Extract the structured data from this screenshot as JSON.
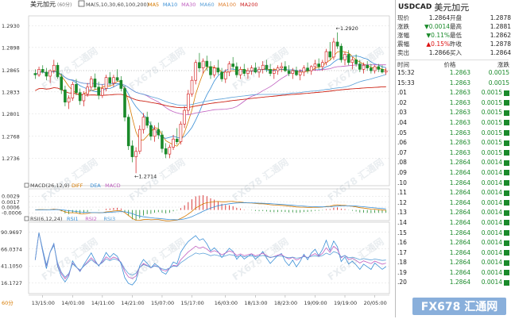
{
  "chart_data": {
    "type": "candlestick",
    "title": "美元加元",
    "period": "60分",
    "ma_legend": {
      "label": "MA(5,10,30,60,100,200)",
      "items": [
        {
          "name": "MA5",
          "color": "#d67a00"
        },
        {
          "name": "MA10",
          "color": "#3a8fd6"
        },
        {
          "name": "MA30",
          "color": "#c060c0"
        },
        {
          "name": "MA60",
          "color": "#5aa0d8"
        },
        {
          "name": "MA100",
          "color": "#e08030"
        },
        {
          "name": "MA200",
          "color": "#cc2020"
        }
      ]
    },
    "ylim": [
      1.2705,
      1.2935
    ],
    "y_ticks": [
      "1.2930",
      "1.2898",
      "1.2865",
      "1.2833",
      "1.2801",
      "1.2768",
      "1.2736"
    ],
    "y_tick_values": [
      1.293,
      1.2898,
      1.2865,
      1.2833,
      1.2801,
      1.2768,
      1.2736
    ],
    "x_ticks": [
      "13/15:00",
      "14/01:00",
      "14/11:00",
      "14/21:00",
      "15/07:00",
      "15/17:00",
      "16/03:00",
      "18/13:00",
      "18/23:00",
      "19/09:00",
      "19/19:00",
      "20/05:00"
    ],
    "x_tick_index": [
      2,
      10,
      18,
      26,
      34,
      42,
      51,
      59,
      67,
      75,
      83,
      91
    ],
    "annotations": [
      {
        "text": "1.2920",
        "index": 81
      },
      {
        "text": "1.2714",
        "index": 27
      }
    ],
    "candles": [
      [
        1.286,
        1.2866,
        1.2852,
        1.2858
      ],
      [
        1.2858,
        1.287,
        1.2855,
        1.2866
      ],
      [
        1.2866,
        1.2872,
        1.286,
        1.2862
      ],
      [
        1.2862,
        1.2868,
        1.285,
        1.2856
      ],
      [
        1.2856,
        1.2866,
        1.2846,
        1.2864
      ],
      [
        1.2864,
        1.288,
        1.286,
        1.2872
      ],
      [
        1.2872,
        1.2876,
        1.2852,
        1.2855
      ],
      [
        1.2855,
        1.286,
        1.283,
        1.2836
      ],
      [
        1.2836,
        1.2842,
        1.2812,
        1.2818
      ],
      [
        1.2818,
        1.2828,
        1.2808,
        1.2824
      ],
      [
        1.2824,
        1.2848,
        1.282,
        1.2844
      ],
      [
        1.2844,
        1.2852,
        1.2828,
        1.2832
      ],
      [
        1.2832,
        1.2838,
        1.2814,
        1.282
      ],
      [
        1.282,
        1.2834,
        1.2812,
        1.283
      ],
      [
        1.283,
        1.2846,
        1.2826,
        1.284
      ],
      [
        1.284,
        1.2856,
        1.2836,
        1.2852
      ],
      [
        1.2852,
        1.286,
        1.2836,
        1.284
      ],
      [
        1.284,
        1.2848,
        1.2822,
        1.2828
      ],
      [
        1.2828,
        1.2844,
        1.2824,
        1.2838
      ],
      [
        1.2838,
        1.2858,
        1.2834,
        1.2854
      ],
      [
        1.2854,
        1.2862,
        1.2842,
        1.2846
      ],
      [
        1.2846,
        1.2858,
        1.284,
        1.2854
      ],
      [
        1.2854,
        1.2866,
        1.2848,
        1.285
      ],
      [
        1.285,
        1.2856,
        1.2834,
        1.2838
      ],
      [
        1.2838,
        1.2842,
        1.279,
        1.2796
      ],
      [
        1.2796,
        1.28,
        1.2748,
        1.2754
      ],
      [
        1.2754,
        1.2762,
        1.273,
        1.2738
      ],
      [
        1.2738,
        1.2752,
        1.2714,
        1.2746
      ],
      [
        1.2746,
        1.2784,
        1.2742,
        1.2778
      ],
      [
        1.2778,
        1.2802,
        1.2772,
        1.2796
      ],
      [
        1.2796,
        1.2804,
        1.278,
        1.2784
      ],
      [
        1.2784,
        1.279,
        1.2762,
        1.2768
      ],
      [
        1.2768,
        1.2784,
        1.276,
        1.2778
      ],
      [
        1.2778,
        1.2788,
        1.2764,
        1.277
      ],
      [
        1.277,
        1.2776,
        1.2744,
        1.275
      ],
      [
        1.275,
        1.2758,
        1.2736,
        1.2742
      ],
      [
        1.2742,
        1.2756,
        1.2736,
        1.2752
      ],
      [
        1.2752,
        1.277,
        1.2748,
        1.2764
      ],
      [
        1.2764,
        1.278,
        1.2756,
        1.276
      ],
      [
        1.276,
        1.279,
        1.2756,
        1.2786
      ],
      [
        1.2786,
        1.2812,
        1.278,
        1.2806
      ],
      [
        1.2806,
        1.2836,
        1.28,
        1.283
      ],
      [
        1.283,
        1.2856,
        1.2826,
        1.285
      ],
      [
        1.285,
        1.288,
        1.2844,
        1.2876
      ],
      [
        1.2876,
        1.289,
        1.2862,
        1.2868
      ],
      [
        1.2868,
        1.2882,
        1.286,
        1.2878
      ],
      [
        1.2878,
        1.2886,
        1.2864,
        1.287
      ],
      [
        1.287,
        1.2878,
        1.2852,
        1.2858
      ],
      [
        1.2858,
        1.2872,
        1.2854,
        1.2868
      ],
      [
        1.2868,
        1.288,
        1.2858,
        1.2862
      ],
      [
        1.2862,
        1.2868,
        1.2848,
        1.2852
      ],
      [
        1.2852,
        1.2866,
        1.2846,
        1.2862
      ],
      [
        1.2862,
        1.2878,
        1.2856,
        1.2874
      ],
      [
        1.2874,
        1.2884,
        1.2866,
        1.287
      ],
      [
        1.287,
        1.2876,
        1.2854,
        1.2858
      ],
      [
        1.2858,
        1.287,
        1.2852,
        1.2866
      ],
      [
        1.2866,
        1.2874,
        1.2856,
        1.286
      ],
      [
        1.286,
        1.2868,
        1.2852,
        1.2864
      ],
      [
        1.2864,
        1.2872,
        1.2858,
        1.2868
      ],
      [
        1.2868,
        1.2876,
        1.286,
        1.2862
      ],
      [
        1.2862,
        1.287,
        1.2854,
        1.2866
      ],
      [
        1.2866,
        1.2878,
        1.286,
        1.2872
      ],
      [
        1.2872,
        1.288,
        1.2862,
        1.2866
      ],
      [
        1.2866,
        1.2874,
        1.2856,
        1.286
      ],
      [
        1.286,
        1.2868,
        1.2852,
        1.2864
      ],
      [
        1.2864,
        1.2872,
        1.2858,
        1.2868
      ],
      [
        1.2868,
        1.2876,
        1.2862,
        1.287
      ],
      [
        1.287,
        1.2878,
        1.2862,
        1.2864
      ],
      [
        1.2864,
        1.2872,
        1.2856,
        1.286
      ],
      [
        1.286,
        1.2868,
        1.2852,
        1.2864
      ],
      [
        1.2864,
        1.287,
        1.2856,
        1.2858
      ],
      [
        1.2858,
        1.2866,
        1.285,
        1.2862
      ],
      [
        1.2862,
        1.2872,
        1.2856,
        1.2868
      ],
      [
        1.2868,
        1.2876,
        1.286,
        1.2864
      ],
      [
        1.2864,
        1.2872,
        1.2858,
        1.287
      ],
      [
        1.287,
        1.288,
        1.2864,
        1.2874
      ],
      [
        1.2874,
        1.2882,
        1.2866,
        1.287
      ],
      [
        1.287,
        1.288,
        1.2864,
        1.2876
      ],
      [
        1.2876,
        1.2896,
        1.2872,
        1.2892
      ],
      [
        1.2892,
        1.2906,
        1.288,
        1.2884
      ],
      [
        1.2884,
        1.2912,
        1.288,
        1.2906
      ],
      [
        1.2906,
        1.292,
        1.2896,
        1.29
      ],
      [
        1.29,
        1.2904,
        1.2876,
        1.288
      ],
      [
        1.288,
        1.2892,
        1.2872,
        1.2888
      ],
      [
        1.2888,
        1.2894,
        1.2872,
        1.2876
      ],
      [
        1.2876,
        1.2884,
        1.2866,
        1.288
      ],
      [
        1.288,
        1.2888,
        1.287,
        1.2874
      ],
      [
        1.2874,
        1.288,
        1.2862,
        1.2866
      ],
      [
        1.2866,
        1.2876,
        1.286,
        1.2872
      ],
      [
        1.2872,
        1.2878,
        1.2864,
        1.2868
      ],
      [
        1.2868,
        1.2874,
        1.286,
        1.2864
      ],
      [
        1.2864,
        1.2872,
        1.286,
        1.287
      ],
      [
        1.287,
        1.2874,
        1.2862,
        1.2866
      ],
      [
        1.2866,
        1.2872,
        1.286,
        1.2862
      ],
      [
        1.2862,
        1.2868,
        1.2858,
        1.2864
      ]
    ],
    "macd": {
      "label": "MACD(26,12,9)",
      "items": [
        {
          "name": "DIFF",
          "color": "#d67a00"
        },
        {
          "name": "DEA",
          "color": "#3a8fd6"
        },
        {
          "name": "MACD",
          "color": "#c060c0"
        }
      ],
      "ylim": [
        -0.0009,
        0.0031
      ],
      "y_ticks": [
        "0.0029",
        "0.0017",
        "0.0006",
        "-0.0006"
      ],
      "y_tick_values": [
        0.0029,
        0.0017,
        0.0006,
        -0.0006
      ]
    },
    "rsi": {
      "label": "RSI(6,12,24)",
      "items": [
        {
          "name": "RSI1",
          "color": "#3a8fd6"
        },
        {
          "name": "RSI2",
          "color": "#c060c0"
        },
        {
          "name": "RSI3",
          "color": "#5aa0d8"
        }
      ],
      "ylim": [
        10,
        96
      ],
      "y_ticks": [
        "90.9697",
        "66.0374",
        "41.1050",
        "16.1727"
      ],
      "y_tick_values": [
        90.9697,
        66.0374,
        41.105,
        16.1727
      ]
    }
  },
  "quote": {
    "symbol": "USDCAD",
    "name": "美元加元",
    "rows": [
      {
        "l1": "现价",
        "v1": "1.2864",
        "c1": "blk",
        "l2": "开盘",
        "v2": "1.2878",
        "c2": "blk"
      },
      {
        "l1": "涨跌",
        "v1": "▼0.0014",
        "c1": "dn",
        "l2": "最高",
        "v2": "1.2881",
        "c2": "blk"
      },
      {
        "l1": "涨幅",
        "v1": "▼0.11%",
        "c1": "dn",
        "l2": "最低",
        "v2": "1.2862",
        "c2": "blk"
      },
      {
        "l1": "震幅",
        "v1": "▲0.15%",
        "c1": "up",
        "l2": "昨收",
        "v2": "1.2878",
        "c2": "blk"
      },
      {
        "l1": "卖出",
        "v1": "1.2866",
        "c1": "blk",
        "l2": "买入",
        "v2": "1.2864",
        "c2": "blk"
      }
    ]
  },
  "ticks": {
    "headers": [
      "时间",
      "价格",
      "涨跌"
    ],
    "rows": [
      {
        "t": "15:32",
        "p": "1.2863",
        "c": "0.0015",
        "sq": false
      },
      {
        "t": "15:33",
        "p": "1.2863",
        "c": "0.0015",
        "sq": false
      },
      {
        "t": ".01",
        "p": "1.2863",
        "c": "0.0015",
        "sq": true
      },
      {
        "t": ".02",
        "p": "1.2863",
        "c": "0.0015",
        "sq": true
      },
      {
        "t": ".03",
        "p": "1.2863",
        "c": "0.0015",
        "sq": true
      },
      {
        "t": ".04",
        "p": "1.2863",
        "c": "0.0015",
        "sq": true
      },
      {
        "t": ".05",
        "p": "1.2863",
        "c": "0.0015",
        "sq": true
      },
      {
        "t": ".06",
        "p": "1.2863",
        "c": "0.0015",
        "sq": true
      },
      {
        "t": ".07",
        "p": "1.2863",
        "c": "0.0015",
        "sq": true
      },
      {
        "t": ".08",
        "p": "1.2864",
        "c": "0.0014",
        "sq": true
      },
      {
        "t": ".09",
        "p": "1.2864",
        "c": "0.0014",
        "sq": true
      },
      {
        "t": ".10",
        "p": "1.2864",
        "c": "0.0014",
        "sq": true
      },
      {
        "t": ".11",
        "p": "1.2864",
        "c": "0.0014",
        "sq": true
      },
      {
        "t": ".12",
        "p": "1.2864",
        "c": "0.0014",
        "sq": true
      },
      {
        "t": ".13",
        "p": "1.2864",
        "c": "0.0014",
        "sq": true
      },
      {
        "t": ".14",
        "p": "1.2864",
        "c": "0.0014",
        "sq": true
      },
      {
        "t": ".15",
        "p": "1.2864",
        "c": "0.0014",
        "sq": true
      },
      {
        "t": ".16",
        "p": "1.2864",
        "c": "0.0014",
        "sq": true
      },
      {
        "t": ".17",
        "p": "1.2864",
        "c": "0.0014",
        "sq": true
      },
      {
        "t": ".18",
        "p": "1.2864",
        "c": "0.0014",
        "sq": true
      },
      {
        "t": ".19",
        "p": "1.2864",
        "c": "0.0014",
        "sq": true
      },
      {
        "t": ".20",
        "p": "1.2864",
        "c": "0.0014",
        "sq": true
      }
    ]
  },
  "watermark": "FX678 汇通网",
  "logo_text": "FX678 汇通网",
  "colors": {
    "up": "#d11111",
    "down": "#1a8a2a",
    "grid": "#dcdcdc"
  }
}
